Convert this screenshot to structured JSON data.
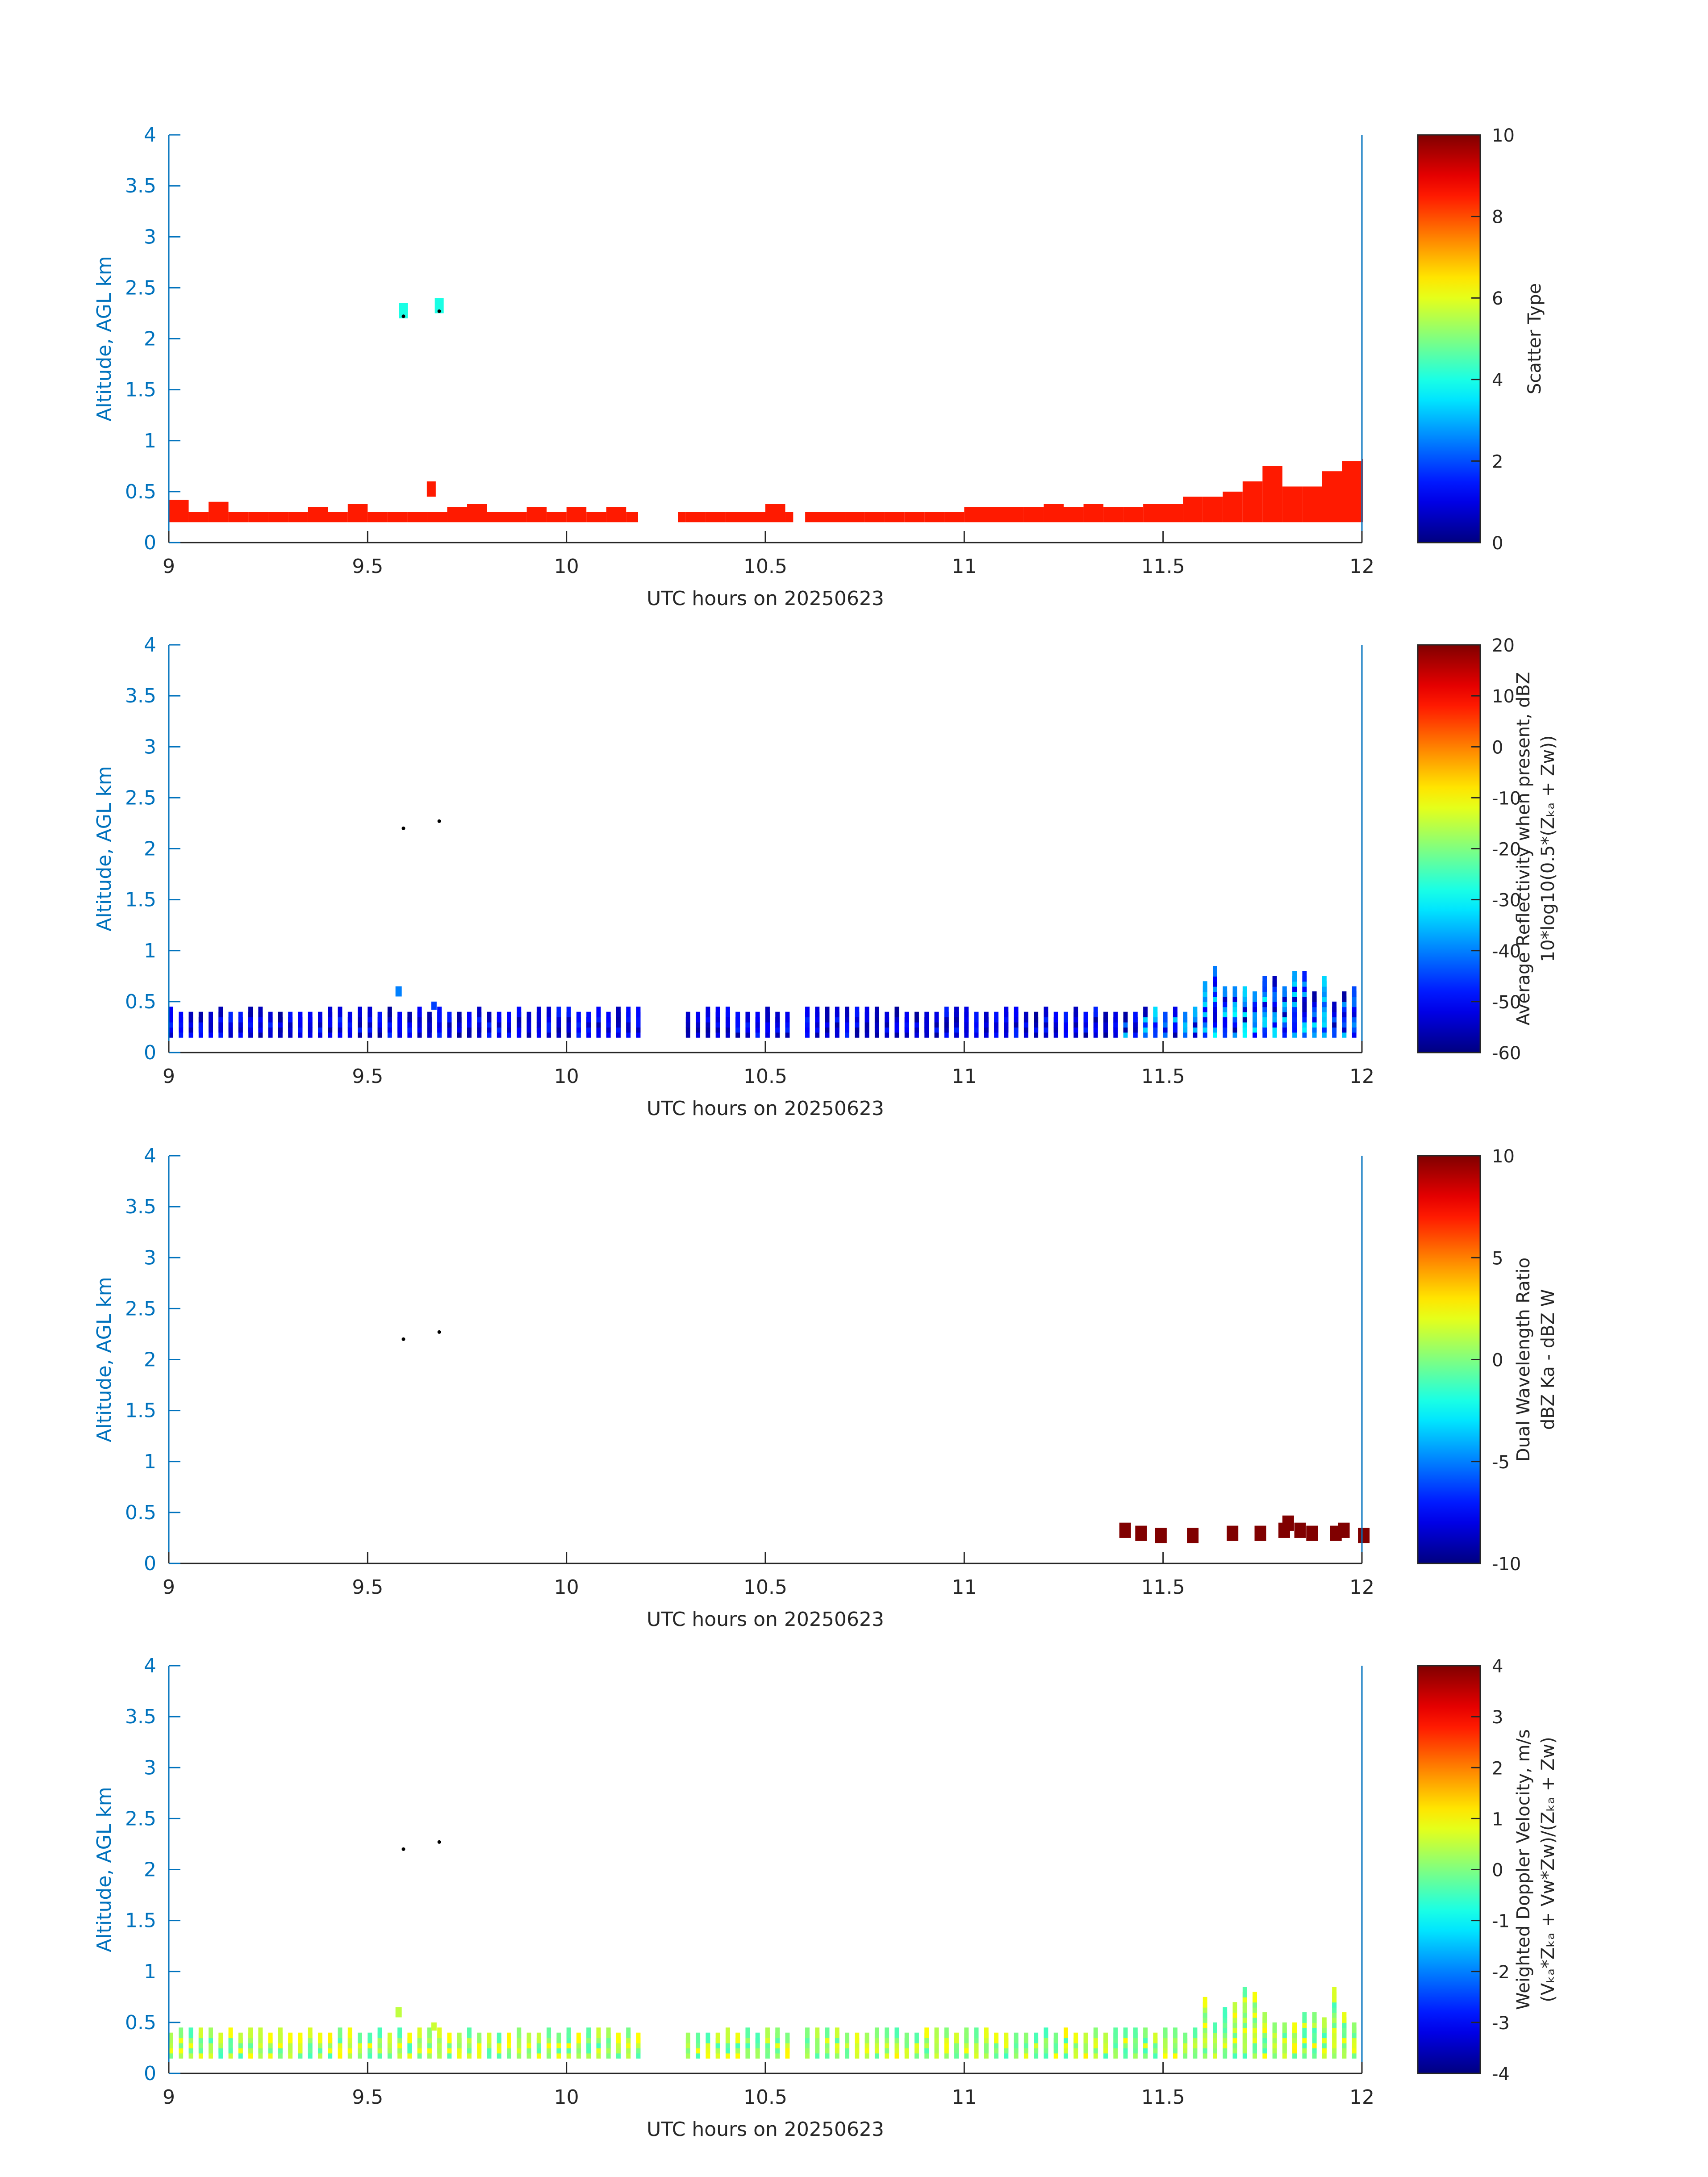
{
  "figure": {
    "panels": [
      {
        "ylabel": "Altitude, AGL km",
        "xlabel": "UTC hours on 20250623",
        "cbar_label_lines": [
          "Scatter Type"
        ]
      },
      {
        "ylabel": "Altitude, AGL km",
        "xlabel": "UTC hours on 20250623",
        "cbar_label_lines": [
          "Average Reflectivity when present, dBZ",
          "10*log10(0.5*(Zₖₐ + Zᴡ))"
        ]
      },
      {
        "ylabel": "Altitude, AGL km",
        "xlabel": "UTC hours on 20250623",
        "cbar_label_lines": [
          "Dual Wavelength Ratio",
          "dBZ Ka - dBZ W"
        ]
      },
      {
        "ylabel": "Altitude, AGL km",
        "xlabel": "UTC hours on 20250623",
        "cbar_label_lines": [
          "Weighted Doppler Velocity, m/s",
          "(Vₖₐ*Zₖₐ + Vᴡ*Zᴡ)/(Zₖₐ + Zᴡ)"
        ]
      }
    ]
  },
  "chart_data": [
    {
      "type": "heatmap",
      "xlabel": "UTC hours on 20250623",
      "ylabel": "Altitude, AGL km",
      "xlim": [
        9,
        12
      ],
      "ylim": [
        0,
        4
      ],
      "xticks": [
        "9",
        "9.5",
        "10",
        "10.5",
        "11",
        "11.5",
        "12"
      ],
      "yticks": [
        "0",
        "0.5",
        "1",
        "1.5",
        "2",
        "2.5",
        "3",
        "3.5",
        "4"
      ],
      "colorbar": {
        "label": "Scatter Type",
        "range": [
          0,
          10
        ],
        "ticks": [
          "0",
          "2",
          "4",
          "6",
          "8",
          "10"
        ],
        "colormap": "jet"
      },
      "dominant_value": 8.5,
      "layer_top_km": [
        [
          9.0,
          0.42
        ],
        [
          9.05,
          0.3
        ],
        [
          9.1,
          0.4
        ],
        [
          9.15,
          0.3
        ],
        [
          9.2,
          0.3
        ],
        [
          9.25,
          0.3
        ],
        [
          9.3,
          0.3
        ],
        [
          9.35,
          0.35
        ],
        [
          9.4,
          0.3
        ],
        [
          9.45,
          0.38
        ],
        [
          9.5,
          0.3
        ],
        [
          9.55,
          0.3
        ],
        [
          9.6,
          0.3
        ],
        [
          9.65,
          0.3
        ],
        [
          9.7,
          0.35
        ],
        [
          9.75,
          0.38
        ],
        [
          9.8,
          0.3
        ],
        [
          9.85,
          0.3
        ],
        [
          9.9,
          0.35
        ],
        [
          9.95,
          0.3
        ],
        [
          10.0,
          0.35
        ],
        [
          10.05,
          0.3
        ],
        [
          10.1,
          0.35
        ],
        [
          10.15,
          0.3
        ],
        [
          10.3,
          0.3
        ],
        [
          10.35,
          0.3
        ],
        [
          10.4,
          0.3
        ],
        [
          10.5,
          0.38
        ],
        [
          10.55,
          0.3
        ],
        [
          10.6,
          0.3
        ],
        [
          10.65,
          0.3
        ],
        [
          10.7,
          0.3
        ],
        [
          10.75,
          0.3
        ],
        [
          10.8,
          0.3
        ],
        [
          10.85,
          0.3
        ],
        [
          10.9,
          0.3
        ],
        [
          10.95,
          0.3
        ],
        [
          11.0,
          0.35
        ],
        [
          11.05,
          0.35
        ],
        [
          11.1,
          0.35
        ],
        [
          11.15,
          0.35
        ],
        [
          11.2,
          0.38
        ],
        [
          11.25,
          0.35
        ],
        [
          11.3,
          0.38
        ],
        [
          11.35,
          0.35
        ],
        [
          11.4,
          0.35
        ],
        [
          11.45,
          0.38
        ],
        [
          11.5,
          0.38
        ],
        [
          11.55,
          0.45
        ],
        [
          11.6,
          0.45
        ],
        [
          11.65,
          0.5
        ],
        [
          11.7,
          0.6
        ],
        [
          11.75,
          0.75
        ],
        [
          11.8,
          0.55
        ],
        [
          11.85,
          0.55
        ],
        [
          11.9,
          0.7
        ],
        [
          11.95,
          0.8
        ],
        [
          12.0,
          0.82
        ]
      ],
      "layer_bottom_km": 0.2,
      "points": [
        {
          "x": 9.59,
          "y": 2.25,
          "value": 4
        },
        {
          "x": 9.68,
          "y": 2.3,
          "value": 4
        },
        {
          "x": 9.66,
          "y": 0.5,
          "value": 8.5
        }
      ]
    },
    {
      "type": "heatmap",
      "xlabel": "UTC hours on 20250623",
      "ylabel": "Altitude, AGL km",
      "xlim": [
        9,
        12
      ],
      "ylim": [
        0,
        4
      ],
      "xticks": [
        "9",
        "9.5",
        "10",
        "10.5",
        "11",
        "11.5",
        "12"
      ],
      "yticks": [
        "0",
        "0.5",
        "1",
        "1.5",
        "2",
        "2.5",
        "3",
        "3.5",
        "4"
      ],
      "colorbar": {
        "label": "Average Reflectivity when present, dBZ",
        "range": [
          -60,
          20
        ],
        "ticks": [
          "-60",
          "-50",
          "-40",
          "-30",
          "-20",
          "-10",
          "0",
          "10",
          "20"
        ],
        "colormap": "jet"
      },
      "value_range_observed": [
        -58,
        -30
      ],
      "points": [
        {
          "x": 9.59,
          "y": 2.2,
          "value": -60
        },
        {
          "x": 9.68,
          "y": 2.27,
          "value": -60
        }
      ]
    },
    {
      "type": "heatmap",
      "xlabel": "UTC hours on 20250623",
      "ylabel": "Altitude, AGL km",
      "xlim": [
        9,
        12
      ],
      "ylim": [
        0,
        4
      ],
      "xticks": [
        "9",
        "9.5",
        "10",
        "10.5",
        "11",
        "11.5",
        "12"
      ],
      "yticks": [
        "0",
        "0.5",
        "1",
        "1.5",
        "2",
        "2.5",
        "3",
        "3.5",
        "4"
      ],
      "colorbar": {
        "label": "Dual Wavelength Ratio",
        "range": [
          -10,
          10
        ],
        "ticks": [
          "-10",
          "-5",
          "0",
          "5",
          "10"
        ],
        "colormap": "jet"
      },
      "cells": [
        [
          11.39,
          0.35,
          10
        ],
        [
          11.43,
          0.32,
          10
        ],
        [
          11.48,
          0.3,
          10
        ],
        [
          11.56,
          0.3,
          10
        ],
        [
          11.66,
          0.32,
          10
        ],
        [
          11.73,
          0.32,
          10
        ],
        [
          11.79,
          0.35,
          10
        ],
        [
          11.8,
          0.42,
          10
        ],
        [
          11.83,
          0.35,
          10
        ],
        [
          11.86,
          0.32,
          10
        ],
        [
          11.92,
          0.32,
          10
        ],
        [
          11.94,
          0.35,
          10
        ],
        [
          11.99,
          0.3,
          10
        ]
      ],
      "points": [
        {
          "x": 9.59,
          "y": 2.2,
          "value": -10
        },
        {
          "x": 9.68,
          "y": 2.27,
          "value": -10
        }
      ]
    },
    {
      "type": "heatmap",
      "xlabel": "UTC hours on 20250623",
      "ylabel": "Altitude, AGL km",
      "xlim": [
        9,
        12
      ],
      "ylim": [
        0,
        4
      ],
      "xticks": [
        "9",
        "9.5",
        "10",
        "10.5",
        "11",
        "11.5",
        "12"
      ],
      "yticks": [
        "0",
        "0.5",
        "1",
        "1.5",
        "2",
        "2.5",
        "3",
        "3.5",
        "4"
      ],
      "colorbar": {
        "label": "Weighted Doppler Velocity, m/s",
        "range": [
          -4,
          4
        ],
        "ticks": [
          "-4",
          "-3",
          "-2",
          "-1",
          "0",
          "1",
          "2",
          "3",
          "4"
        ],
        "colormap": "jet"
      },
      "value_range_observed": [
        -3,
        3
      ],
      "points": [
        {
          "x": 9.59,
          "y": 2.2,
          "value": -4
        },
        {
          "x": 9.68,
          "y": 2.27,
          "value": -4
        }
      ]
    }
  ]
}
